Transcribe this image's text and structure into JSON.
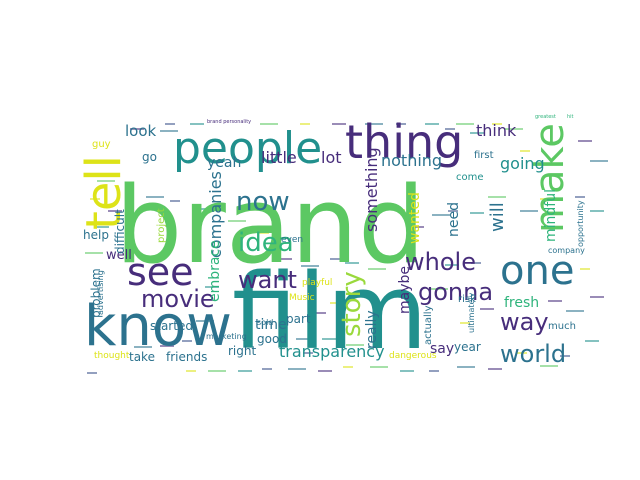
{
  "palette": {
    "yellow": "#dde318",
    "lime": "#9ad93c",
    "green": "#5cc863",
    "seagreen": "#2fb47c",
    "teal": "#21908d",
    "steel": "#2c728e",
    "blue": "#3b528b",
    "indigo": "#472d7b",
    "purple": "#440154"
  },
  "words": [
    {
      "text": "brand",
      "color": "green"
    },
    {
      "text": "film",
      "color": "teal"
    },
    {
      "text": "know",
      "color": "steel"
    },
    {
      "text": "people",
      "color": "teal"
    },
    {
      "text": "thing",
      "color": "indigo"
    },
    {
      "text": "tell",
      "color": "yellow"
    },
    {
      "text": "make",
      "color": "green"
    },
    {
      "text": "see",
      "color": "indigo"
    },
    {
      "text": "one",
      "color": "steel"
    },
    {
      "text": "movie",
      "color": "indigo"
    },
    {
      "text": "idea",
      "color": "seagreen"
    },
    {
      "text": "now",
      "color": "steel"
    },
    {
      "text": "want",
      "color": "indigo"
    },
    {
      "text": "whole",
      "color": "indigo"
    },
    {
      "text": "gonna",
      "color": "indigo"
    },
    {
      "text": "way",
      "color": "indigo"
    },
    {
      "text": "world",
      "color": "steel"
    },
    {
      "text": "story",
      "color": "lime"
    },
    {
      "text": "transparency",
      "color": "teal"
    },
    {
      "text": "look",
      "color": "steel"
    },
    {
      "text": "little",
      "color": "indigo"
    },
    {
      "text": "lot",
      "color": "indigo"
    },
    {
      "text": "nothing",
      "color": "steel"
    },
    {
      "text": "think",
      "color": "indigo"
    },
    {
      "text": "going",
      "color": "teal"
    },
    {
      "text": "yeah",
      "color": "steel"
    },
    {
      "text": "companies",
      "color": "steel"
    },
    {
      "text": "something",
      "color": "indigo"
    },
    {
      "text": "wanted",
      "color": "yellow"
    },
    {
      "text": "will",
      "color": "steel"
    },
    {
      "text": "mindful",
      "color": "seagreen"
    },
    {
      "text": "need",
      "color": "steel"
    },
    {
      "text": "maybe",
      "color": "indigo"
    },
    {
      "text": "really",
      "color": "steel"
    },
    {
      "text": "fresh",
      "color": "seagreen"
    },
    {
      "text": "say",
      "color": "indigo"
    },
    {
      "text": "year",
      "color": "steel"
    },
    {
      "text": "time",
      "color": "steel"
    },
    {
      "text": "embrace",
      "color": "seagreen"
    },
    {
      "text": "part",
      "color": "steel"
    },
    {
      "text": "good",
      "color": "steel"
    },
    {
      "text": "right",
      "color": "steel"
    },
    {
      "text": "friends",
      "color": "steel"
    },
    {
      "text": "take",
      "color": "steel"
    },
    {
      "text": "started",
      "color": "steel"
    },
    {
      "text": "well",
      "color": "indigo"
    },
    {
      "text": "help",
      "color": "steel"
    },
    {
      "text": "difficult",
      "color": "steel"
    },
    {
      "text": "problem",
      "color": "steel"
    },
    {
      "text": "advertising",
      "color": "steel"
    },
    {
      "text": "thought",
      "color": "yellow"
    },
    {
      "text": "marketing",
      "color": "steel"
    },
    {
      "text": "Music",
      "color": "yellow"
    },
    {
      "text": "playful",
      "color": "yellow"
    },
    {
      "text": "sold",
      "color": "steel"
    },
    {
      "text": "even",
      "color": "steel"
    },
    {
      "text": "actually",
      "color": "steel"
    },
    {
      "text": "ultimately",
      "color": "steel"
    },
    {
      "text": "dangerous",
      "color": "yellow"
    },
    {
      "text": "risk",
      "color": "steel"
    },
    {
      "text": "much",
      "color": "steel"
    },
    {
      "text": "come",
      "color": "teal"
    },
    {
      "text": "first",
      "color": "steel"
    },
    {
      "text": "opportunity",
      "color": "steel"
    },
    {
      "text": "company",
      "color": "steel"
    },
    {
      "text": "go",
      "color": "steel"
    },
    {
      "text": "guy",
      "color": "yellow"
    },
    {
      "text": "project",
      "color": "lime"
    },
    {
      "text": "brand personality",
      "color": "indigo"
    },
    {
      "text": "greatest",
      "color": "seagreen"
    },
    {
      "text": "hit",
      "color": "seagreen"
    }
  ]
}
